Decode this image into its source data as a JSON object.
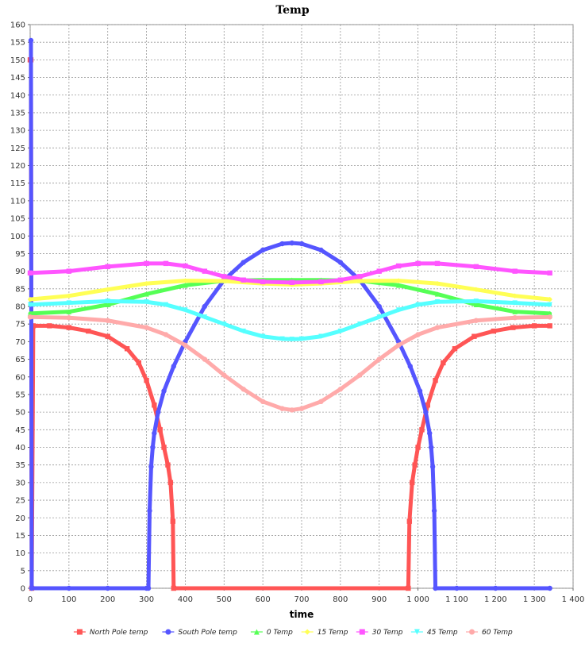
{
  "chart_data": {
    "type": "scatter",
    "title": "Temp",
    "xlabel": "time",
    "ylabel": "",
    "xlim": [
      0,
      1400
    ],
    "ylim": [
      0,
      160
    ],
    "x_ticks": [
      0,
      100,
      200,
      300,
      400,
      500,
      600,
      700,
      800,
      900,
      1000,
      1100,
      1200,
      1300,
      1400
    ],
    "x_tick_labels": [
      "0",
      "100",
      "200",
      "300",
      "400",
      "500",
      "600",
      "700",
      "800",
      "900",
      "1 000",
      "1 100",
      "1 200",
      "1 300",
      "1 400"
    ],
    "y_ticks": [
      0,
      5,
      10,
      15,
      20,
      25,
      30,
      35,
      40,
      45,
      50,
      55,
      60,
      65,
      70,
      75,
      80,
      85,
      90,
      95,
      100,
      105,
      110,
      115,
      120,
      125,
      130,
      135,
      140,
      145,
      150,
      155,
      160
    ],
    "grid": true,
    "legend_position": "bottom",
    "series": [
      {
        "name": "North Pole temp",
        "color": "#ff5555",
        "marker": "square",
        "points": [
          [
            0,
            150
          ],
          [
            2,
            150
          ],
          [
            4,
            0
          ],
          [
            8,
            74.5
          ],
          [
            50,
            74.5
          ],
          [
            100,
            74
          ],
          [
            150,
            73
          ],
          [
            200,
            71.5
          ],
          [
            250,
            68
          ],
          [
            280,
            64
          ],
          [
            300,
            59
          ],
          [
            320,
            52
          ],
          [
            335,
            45
          ],
          [
            345,
            40
          ],
          [
            355,
            35
          ],
          [
            362,
            30
          ],
          [
            368,
            19
          ],
          [
            370,
            0
          ],
          [
            975,
            0
          ],
          [
            978,
            19
          ],
          [
            985,
            30
          ],
          [
            992,
            35
          ],
          [
            1000,
            40
          ],
          [
            1010,
            45
          ],
          [
            1025,
            52
          ],
          [
            1045,
            59
          ],
          [
            1065,
            64
          ],
          [
            1095,
            68
          ],
          [
            1145,
            71.5
          ],
          [
            1195,
            73
          ],
          [
            1245,
            74
          ],
          [
            1300,
            74.5
          ],
          [
            1340,
            74.5
          ]
        ]
      },
      {
        "name": "South Pole temp",
        "color": "#5555ff",
        "marker": "circle",
        "points": [
          [
            2,
            155.5
          ],
          [
            4,
            0
          ],
          [
            100,
            0
          ],
          [
            200,
            0
          ],
          [
            300,
            0
          ],
          [
            305,
            0
          ],
          [
            308,
            22
          ],
          [
            312,
            34.5
          ],
          [
            316,
            40
          ],
          [
            320,
            44
          ],
          [
            330,
            50
          ],
          [
            345,
            56
          ],
          [
            370,
            63
          ],
          [
            400,
            70
          ],
          [
            450,
            80
          ],
          [
            500,
            87.5
          ],
          [
            550,
            92.5
          ],
          [
            600,
            96
          ],
          [
            650,
            97.8
          ],
          [
            675,
            98
          ],
          [
            700,
            97.8
          ],
          [
            750,
            96
          ],
          [
            800,
            92.5
          ],
          [
            850,
            87.5
          ],
          [
            900,
            80
          ],
          [
            950,
            70
          ],
          [
            980,
            63
          ],
          [
            1005,
            56
          ],
          [
            1020,
            50
          ],
          [
            1030,
            44
          ],
          [
            1034,
            40
          ],
          [
            1038,
            34.5
          ],
          [
            1042,
            22
          ],
          [
            1045,
            0
          ],
          [
            1100,
            0
          ],
          [
            1200,
            0
          ],
          [
            1340,
            0
          ]
        ]
      },
      {
        "name": "0 Temp",
        "color": "#55ff55",
        "marker": "triangle-up",
        "points": [
          [
            0,
            78
          ],
          [
            100,
            78.5
          ],
          [
            200,
            80.5
          ],
          [
            300,
            83.5
          ],
          [
            400,
            86
          ],
          [
            500,
            87.3
          ],
          [
            600,
            87.5
          ],
          [
            675,
            87.5
          ],
          [
            750,
            87.5
          ],
          [
            850,
            87.3
          ],
          [
            950,
            86
          ],
          [
            1050,
            83.5
          ],
          [
            1150,
            80.5
          ],
          [
            1250,
            78.5
          ],
          [
            1340,
            78
          ]
        ]
      },
      {
        "name": "15 Temp",
        "color": "#ffff55",
        "marker": "diamond",
        "points": [
          [
            0,
            82
          ],
          [
            100,
            83
          ],
          [
            200,
            84.8
          ],
          [
            300,
            86.5
          ],
          [
            400,
            87.3
          ],
          [
            500,
            87.2
          ],
          [
            600,
            86.5
          ],
          [
            675,
            86.2
          ],
          [
            750,
            86.5
          ],
          [
            850,
            87.2
          ],
          [
            950,
            87.3
          ],
          [
            1050,
            86.5
          ],
          [
            1150,
            84.8
          ],
          [
            1250,
            83
          ],
          [
            1340,
            82
          ]
        ]
      },
      {
        "name": "30 Temp",
        "color": "#ff55ff",
        "marker": "square",
        "points": [
          [
            0,
            89.5
          ],
          [
            100,
            90
          ],
          [
            200,
            91.3
          ],
          [
            300,
            92.2
          ],
          [
            350,
            92.2
          ],
          [
            400,
            91.5
          ],
          [
            450,
            90
          ],
          [
            500,
            88.5
          ],
          [
            550,
            87.5
          ],
          [
            600,
            87
          ],
          [
            675,
            86.8
          ],
          [
            750,
            87
          ],
          [
            800,
            87.5
          ],
          [
            850,
            88.5
          ],
          [
            900,
            90
          ],
          [
            950,
            91.5
          ],
          [
            1000,
            92.2
          ],
          [
            1050,
            92.2
          ],
          [
            1150,
            91.3
          ],
          [
            1250,
            90
          ],
          [
            1340,
            89.5
          ]
        ]
      },
      {
        "name": "45 Temp",
        "color": "#55ffff",
        "marker": "triangle-down",
        "points": [
          [
            0,
            80.5
          ],
          [
            100,
            81
          ],
          [
            200,
            81.5
          ],
          [
            300,
            81.3
          ],
          [
            350,
            80.5
          ],
          [
            400,
            79
          ],
          [
            450,
            77
          ],
          [
            500,
            75
          ],
          [
            550,
            73
          ],
          [
            600,
            71.5
          ],
          [
            650,
            70.8
          ],
          [
            675,
            70.7
          ],
          [
            700,
            70.8
          ],
          [
            750,
            71.5
          ],
          [
            800,
            73
          ],
          [
            850,
            75
          ],
          [
            900,
            77
          ],
          [
            950,
            79
          ],
          [
            1000,
            80.5
          ],
          [
            1050,
            81.3
          ],
          [
            1150,
            81.5
          ],
          [
            1250,
            81
          ],
          [
            1340,
            80.5
          ]
        ]
      },
      {
        "name": "60 Temp",
        "color": "#ffaaaa",
        "marker": "circle",
        "points": [
          [
            0,
            77
          ],
          [
            100,
            76.8
          ],
          [
            200,
            76
          ],
          [
            300,
            74
          ],
          [
            350,
            72
          ],
          [
            400,
            69
          ],
          [
            450,
            65
          ],
          [
            500,
            60.5
          ],
          [
            550,
            56.5
          ],
          [
            600,
            53
          ],
          [
            650,
            51
          ],
          [
            675,
            50.6
          ],
          [
            700,
            51
          ],
          [
            750,
            53
          ],
          [
            800,
            56.5
          ],
          [
            850,
            60.5
          ],
          [
            900,
            65
          ],
          [
            950,
            69
          ],
          [
            1000,
            72
          ],
          [
            1050,
            74
          ],
          [
            1150,
            76
          ],
          [
            1250,
            76.8
          ],
          [
            1340,
            77
          ]
        ]
      }
    ]
  }
}
